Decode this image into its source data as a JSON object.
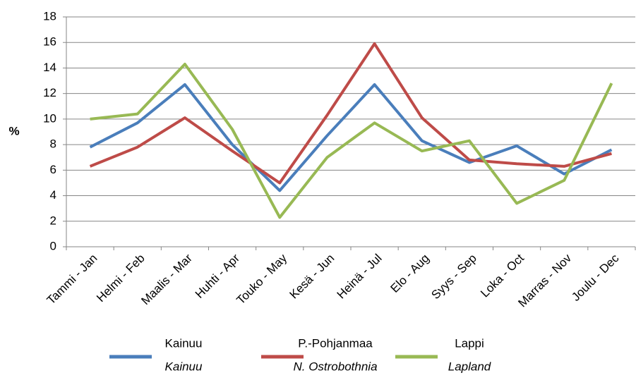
{
  "chart_data": {
    "type": "line",
    "ylabel": "%",
    "categories": [
      "Tammi - Jan",
      "Helmi - Feb",
      "Maalis - Mar",
      "Huhti - Apr",
      "Touko - May",
      "Kesä - Jun",
      "Heinä - Jul",
      "Elo - Aug",
      "Syys - Sep",
      "Loka - Oct",
      "Marras - Nov",
      "Joulu - Dec"
    ],
    "series": [
      {
        "name": "Kainuu",
        "name_en": "Kainuu",
        "color": "#4a7ebb",
        "values": [
          7.8,
          9.7,
          12.7,
          8.0,
          4.4,
          8.7,
          12.7,
          8.3,
          6.6,
          7.9,
          5.7,
          7.6
        ]
      },
      {
        "name": "P.-Pohjanmaa",
        "name_en": "N. Ostrobothnia",
        "color": "#be4b48",
        "values": [
          6.3,
          7.8,
          10.1,
          7.5,
          5.0,
          10.3,
          15.9,
          10.1,
          6.8,
          6.5,
          6.3,
          7.3
        ]
      },
      {
        "name": "Lappi",
        "name_en": "Lapland",
        "color": "#98b954",
        "values": [
          10.0,
          10.4,
          14.3,
          9.2,
          2.3,
          7.0,
          9.7,
          7.5,
          8.3,
          3.4,
          5.2,
          12.8
        ]
      }
    ],
    "ylim": [
      0,
      18
    ],
    "yticks": [
      0,
      2,
      4,
      6,
      8,
      10,
      12,
      14,
      16,
      18
    ],
    "grid": true
  }
}
